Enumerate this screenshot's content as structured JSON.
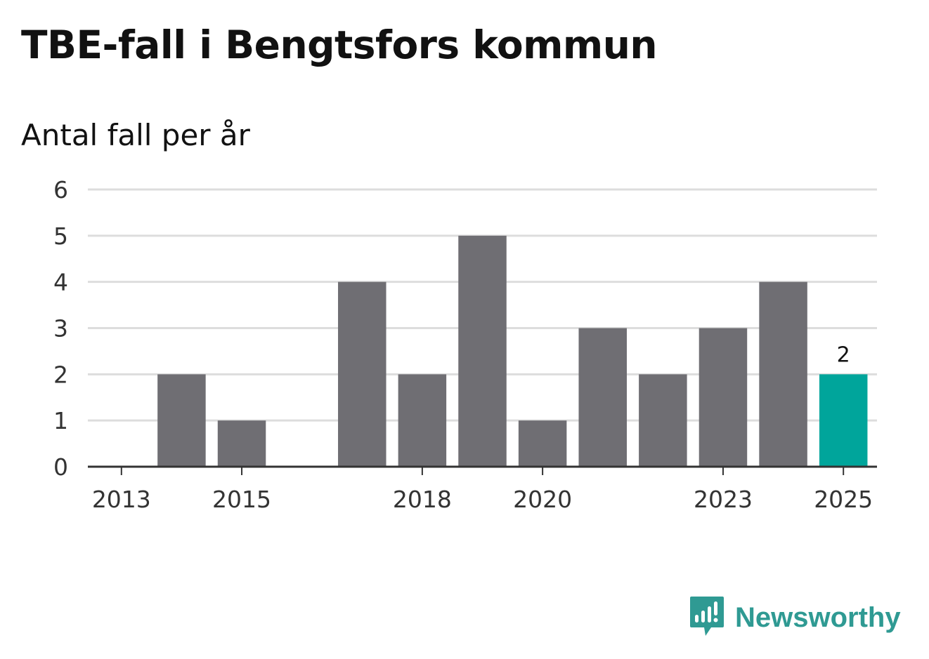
{
  "chart_data": {
    "type": "bar",
    "title": "TBE-fall i Bengtsfors kommun",
    "subtitle": "Antal fall per år",
    "categories": [
      "2013",
      "2014",
      "2015",
      "2016",
      "2017",
      "2018",
      "2019",
      "2020",
      "2021",
      "2022",
      "2023",
      "2024",
      "2025"
    ],
    "values": [
      0,
      2,
      1,
      0,
      4,
      2,
      5,
      1,
      3,
      2,
      3,
      4,
      2
    ],
    "x_tick_labels": [
      "2013",
      "2015",
      "2018",
      "2020",
      "2023",
      "2025"
    ],
    "y_ticks": [
      "0",
      "1",
      "2",
      "3",
      "4",
      "5",
      "6"
    ],
    "ylim": [
      0,
      6
    ],
    "xlabel": "",
    "ylabel": "",
    "grid": true,
    "highlight": {
      "category": "2025",
      "label": "2"
    },
    "colors": {
      "bar": "#6f6e73",
      "highlight": "#00a59b",
      "grid": "#dddddd",
      "axis": "#333333"
    }
  },
  "brand": {
    "name": "Newsworthy",
    "color": "#2f9a93",
    "icon": "newsworthy-logo-icon"
  }
}
